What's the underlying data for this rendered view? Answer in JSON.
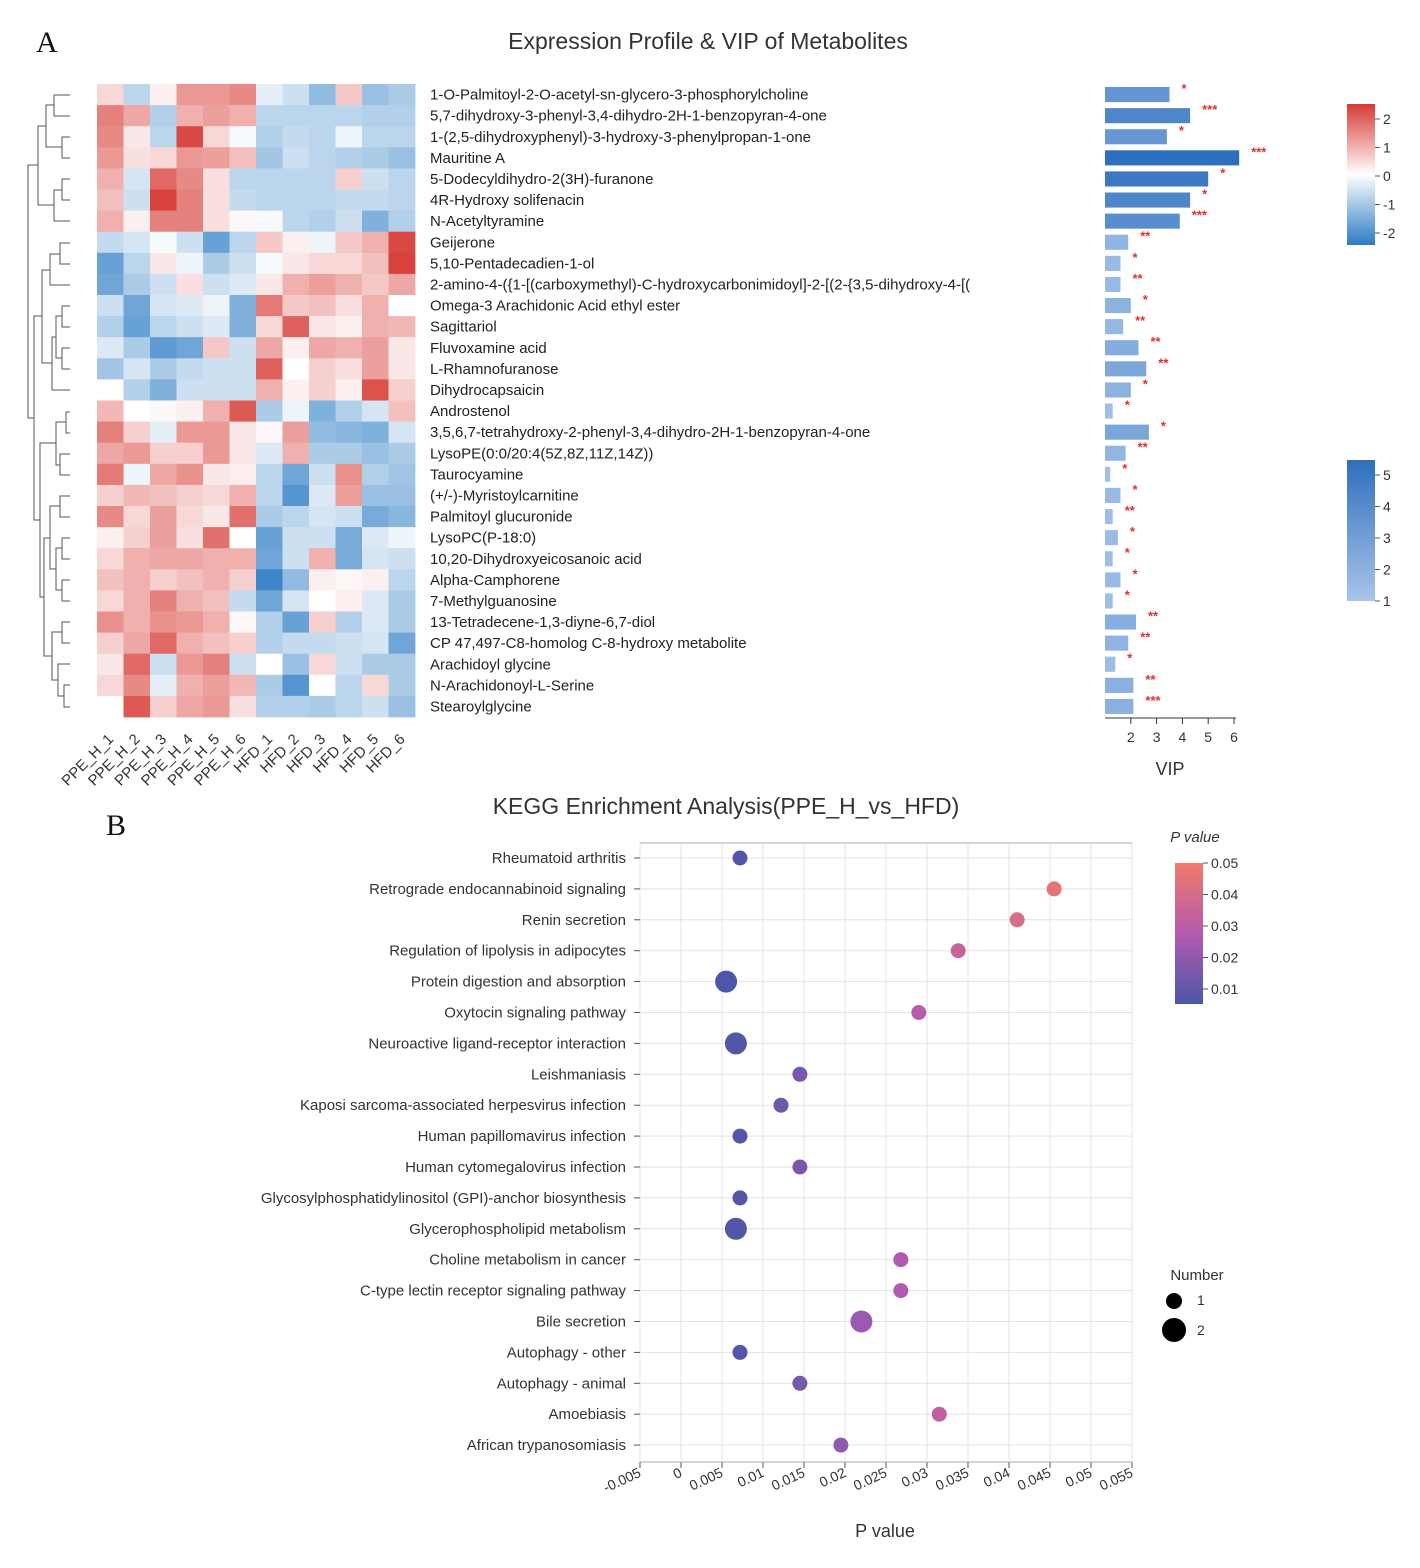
{
  "panel_a_label": "A",
  "panel_b_label": "B",
  "chart_data": [
    {
      "type": "heatmap",
      "title": "Expression Profile & VIP of Metabolites",
      "samples": [
        "PPE_H_1",
        "PPE_H_2",
        "PPE_H_3",
        "PPE_H_4",
        "PPE_H_5",
        "PPE_H_6",
        "HFD_1",
        "HFD_2",
        "HFD_3",
        "HFD_4",
        "HFD_5",
        "HFD_6"
      ],
      "metabolites": [
        "1-O-Palmitoyl-2-O-acetyl-sn-glycero-3-phosphorylcholine",
        "5,7-dihydroxy-3-phenyl-3,4-dihydro-2H-1-benzopyran-4-one",
        "1-(2,5-dihydroxyphenyl)-3-hydroxy-3-phenylpropan-1-one",
        "Mauritine A",
        "5-Dodecyldihydro-2(3H)-furanone",
        "4R-Hydroxy solifenacin",
        "N-Acetyltyramine",
        "Geijerone",
        "5,10-Pentadecadien-1-ol",
        "2-amino-4-({1-[(carboxymethyl)-C-hydroxycarbonimidoyl]-2-[(2-{3,5-dihydroxy-4-[(",
        "Omega-3 Arachidonic Acid ethyl ester",
        "Sagittariol",
        "Fluvoxamine acid",
        "L-Rhamnofuranose",
        "Dihydrocapsaicin",
        "Androstenol",
        "3,5,6,7-tetrahydroxy-2-phenyl-3,4-dihydro-2H-1-benzopyran-4-one",
        "LysoPE(0:0/20:4(5Z,8Z,11Z,14Z))",
        "Taurocyamine",
        "(+/-)-Myristoylcarnitine",
        "Palmitoyl glucuronide",
        "LysoPC(P-18:0)",
        "10,20-Dihydroxyeicosanoic acid",
        "Alpha-Camphorene",
        "7-Methylguanosine",
        "13-Tetradecene-1,3-diyne-6,7-diol",
        "CP 47,497-C8-homolog C-8-hydroxy metabolite",
        "Arachidoyl glycine",
        "N-Arachidonoyl-L-Serine",
        "Stearoylglycine"
      ],
      "values": [
        [
          0.5,
          -0.8,
          0.2,
          1.3,
          1.3,
          1.5,
          -0.3,
          -0.6,
          -1.3,
          0.7,
          -1.2,
          -1.0
        ],
        [
          1.6,
          1.1,
          -0.9,
          1.0,
          1.2,
          1.0,
          -0.8,
          -0.8,
          -0.8,
          -0.8,
          -0.9,
          -0.9
        ],
        [
          1.5,
          0.3,
          -0.8,
          2.3,
          0.5,
          -0.1,
          -0.9,
          -0.7,
          -0.8,
          -0.2,
          -0.8,
          -0.8
        ],
        [
          1.3,
          0.4,
          0.5,
          1.3,
          1.2,
          0.8,
          -1.1,
          -0.6,
          -0.8,
          -0.9,
          -1.0,
          -1.2
        ],
        [
          1.0,
          -0.5,
          1.9,
          1.5,
          0.4,
          -0.8,
          -0.8,
          -0.8,
          -0.8,
          0.6,
          -0.6,
          -0.8
        ],
        [
          0.8,
          -0.6,
          2.4,
          1.6,
          0.4,
          -0.7,
          -0.8,
          -0.8,
          -0.8,
          -0.7,
          -0.7,
          -0.8
        ],
        [
          1.0,
          0.2,
          1.6,
          1.6,
          0.4,
          0.1,
          -0.1,
          -0.8,
          -0.9,
          -0.6,
          -1.5,
          -0.9
        ],
        [
          -0.7,
          -0.5,
          -0.1,
          -0.6,
          -1.8,
          -0.8,
          0.7,
          0.2,
          -0.2,
          0.7,
          1.0,
          2.3
        ],
        [
          -1.8,
          -0.8,
          0.3,
          -0.2,
          -1.0,
          -0.6,
          -0.1,
          0.3,
          0.5,
          0.5,
          0.8,
          2.4
        ],
        [
          -1.7,
          -1.0,
          -0.6,
          0.4,
          -0.6,
          -0.4,
          0.3,
          1.0,
          1.2,
          1.0,
          0.7,
          1.1
        ],
        [
          -0.6,
          -1.7,
          -0.5,
          -0.4,
          -0.2,
          -1.5,
          1.7,
          0.7,
          0.8,
          0.4,
          1.0,
          0.0
        ],
        [
          -0.9,
          -1.8,
          -0.8,
          -0.6,
          -0.4,
          -1.5,
          0.5,
          2.0,
          0.3,
          0.2,
          1.0,
          0.9
        ],
        [
          -0.4,
          -1.0,
          -1.9,
          -1.7,
          0.7,
          -0.6,
          1.1,
          0.2,
          1.1,
          1.0,
          1.2,
          0.3
        ],
        [
          -1.1,
          -0.5,
          -1.0,
          -0.7,
          -0.6,
          -0.6,
          2.0,
          0.0,
          0.6,
          0.4,
          1.2,
          0.3
        ],
        [
          0.0,
          -0.9,
          -1.5,
          -0.6,
          -0.6,
          -0.6,
          1.0,
          0.2,
          0.6,
          0.2,
          2.2,
          0.6
        ],
        [
          0.9,
          0.0,
          0.1,
          0.2,
          1.0,
          2.1,
          -1.0,
          -0.2,
          -1.5,
          -0.9,
          -0.5,
          0.8
        ],
        [
          1.6,
          0.6,
          -0.3,
          1.3,
          1.3,
          0.3,
          0.1,
          1.2,
          -1.3,
          -1.4,
          -1.5,
          -0.5
        ],
        [
          1.1,
          1.3,
          0.6,
          0.6,
          1.3,
          0.3,
          -0.4,
          1.0,
          -1.0,
          -1.0,
          -1.2,
          -1.0
        ],
        [
          1.7,
          -0.2,
          1.1,
          1.4,
          0.3,
          0.2,
          -0.8,
          -1.7,
          -0.6,
          1.4,
          -0.9,
          -1.1
        ],
        [
          0.6,
          0.9,
          0.8,
          0.6,
          0.5,
          1.0,
          -0.8,
          -2.0,
          -0.4,
          1.2,
          -1.2,
          -1.2
        ],
        [
          1.5,
          0.5,
          1.2,
          0.5,
          0.3,
          1.8,
          -1.0,
          -0.8,
          -0.5,
          -0.6,
          -1.6,
          -1.4
        ],
        [
          0.2,
          0.6,
          1.2,
          0.4,
          1.8,
          0.0,
          -1.8,
          -0.6,
          -0.6,
          -1.6,
          -0.4,
          -0.2
        ],
        [
          0.5,
          1.0,
          1.1,
          1.1,
          1.0,
          1.0,
          -1.7,
          -0.6,
          1.0,
          -1.6,
          -0.5,
          -0.6
        ],
        [
          0.8,
          1.0,
          0.6,
          0.8,
          1.0,
          0.6,
          -2.3,
          -1.3,
          0.2,
          0.1,
          0.2,
          -0.8
        ],
        [
          0.5,
          1.0,
          1.6,
          1.0,
          0.8,
          -0.7,
          -1.7,
          -0.5,
          0.0,
          0.2,
          -0.4,
          -1.0
        ],
        [
          1.4,
          1.0,
          1.4,
          1.3,
          1.0,
          0.1,
          -0.9,
          -1.8,
          0.6,
          -0.9,
          -0.4,
          -1.0
        ],
        [
          0.6,
          1.1,
          1.9,
          1.0,
          0.8,
          0.6,
          -0.9,
          -0.7,
          -0.7,
          -0.6,
          -0.5,
          -1.7
        ],
        [
          0.3,
          1.9,
          -0.6,
          1.3,
          1.6,
          -0.6,
          0.0,
          -1.2,
          0.5,
          -0.6,
          -1.0,
          -1.0
        ],
        [
          0.5,
          1.5,
          -0.3,
          1.0,
          1.2,
          0.9,
          -1.0,
          -2.0,
          0.0,
          -0.8,
          0.5,
          -1.0
        ],
        [
          0.0,
          2.1,
          0.6,
          1.1,
          1.3,
          0.4,
          -0.9,
          -0.9,
          -1.0,
          -0.8,
          -0.6,
          -1.2
        ]
      ],
      "vip": [
        3.5,
        4.3,
        3.4,
        6.2,
        5.0,
        4.3,
        3.9,
        1.9,
        1.6,
        1.6,
        2.0,
        1.7,
        2.3,
        2.6,
        2.0,
        1.3,
        2.7,
        1.8,
        1.2,
        1.6,
        1.3,
        1.5,
        1.3,
        1.6,
        1.3,
        2.2,
        1.9,
        1.4,
        2.1,
        2.1
      ],
      "significance": [
        "*",
        "***",
        "*",
        "***",
        "*",
        "*",
        "***",
        "**",
        "*",
        "**",
        "*",
        "**",
        "**",
        "**",
        "*",
        "*",
        "*",
        "**",
        "*",
        "*",
        "**",
        "*",
        "*",
        "*",
        "*",
        "**",
        "**",
        "*",
        "**",
        "***"
      ],
      "vip_xlabel": "VIP",
      "vip_ticks": [
        "2",
        "3",
        "4",
        "5",
        "6"
      ],
      "expr_colorbar_ticks": [
        "2",
        "1",
        "0",
        "-1",
        "-2"
      ],
      "vip_colorbar_ticks": [
        "5",
        "4",
        "3",
        "2",
        "1"
      ],
      "colors": {
        "high": "#d73a34",
        "mid": "#ffffff",
        "low": "#2c7cc4",
        "vip_high": "#2e6fbd",
        "vip_low": "#a8c5ea"
      }
    },
    {
      "type": "scatter",
      "title": "KEGG Enrichment Analysis(PPE_H_vs_HFD)",
      "xlabel": "P value",
      "xlim": [
        -0.005,
        0.055
      ],
      "xticks": [
        "-0.005",
        "0",
        "0.005",
        "0.01",
        "0.015",
        "0.02",
        "0.025",
        "0.03",
        "0.035",
        "0.04",
        "0.045",
        "0.05",
        "0.055"
      ],
      "pathways": [
        {
          "name": "Rheumatoid arthritis",
          "p": 0.0072,
          "number": 1
        },
        {
          "name": "Retrograde endocannabinoid signaling",
          "p": 0.0455,
          "number": 1
        },
        {
          "name": "Renin secretion",
          "p": 0.041,
          "number": 1
        },
        {
          "name": "Regulation of lipolysis in adipocytes",
          "p": 0.0338,
          "number": 1
        },
        {
          "name": "Protein digestion and absorption",
          "p": 0.0055,
          "number": 2
        },
        {
          "name": "Oxytocin signaling pathway",
          "p": 0.029,
          "number": 1
        },
        {
          "name": "Neuroactive ligand-receptor interaction",
          "p": 0.0067,
          "number": 2
        },
        {
          "name": "Leishmaniasis",
          "p": 0.0145,
          "number": 1
        },
        {
          "name": "Kaposi sarcoma-associated herpesvirus infection",
          "p": 0.0122,
          "number": 1
        },
        {
          "name": "Human papillomavirus infection",
          "p": 0.0072,
          "number": 1
        },
        {
          "name": "Human cytomegalovirus infection",
          "p": 0.0145,
          "number": 1
        },
        {
          "name": "Glycosylphosphatidylinositol (GPI)-anchor biosynthesis",
          "p": 0.0072,
          "number": 1
        },
        {
          "name": "Glycerophospholipid metabolism",
          "p": 0.0067,
          "number": 2
        },
        {
          "name": "Choline metabolism in cancer",
          "p": 0.0268,
          "number": 1
        },
        {
          "name": "C-type lectin receptor signaling pathway",
          "p": 0.0268,
          "number": 1
        },
        {
          "name": "Bile secretion",
          "p": 0.022,
          "number": 2
        },
        {
          "name": "Autophagy - other",
          "p": 0.0072,
          "number": 1
        },
        {
          "name": "Autophagy - animal",
          "p": 0.0145,
          "number": 1
        },
        {
          "name": "Amoebiasis",
          "p": 0.0315,
          "number": 1
        },
        {
          "name": "African trypanosomiasis",
          "p": 0.0195,
          "number": 1
        }
      ],
      "colorbar_title": "P value",
      "colorbar_ticks": [
        "0.05",
        "0.04",
        "0.03",
        "0.02",
        "0.01"
      ],
      "size_legend_title": "Number",
      "size_legend_items": [
        "1",
        "2"
      ],
      "colors": {
        "low": "#4b56a8",
        "mid": "#b45bae",
        "high": "#f07a6a"
      }
    }
  ]
}
